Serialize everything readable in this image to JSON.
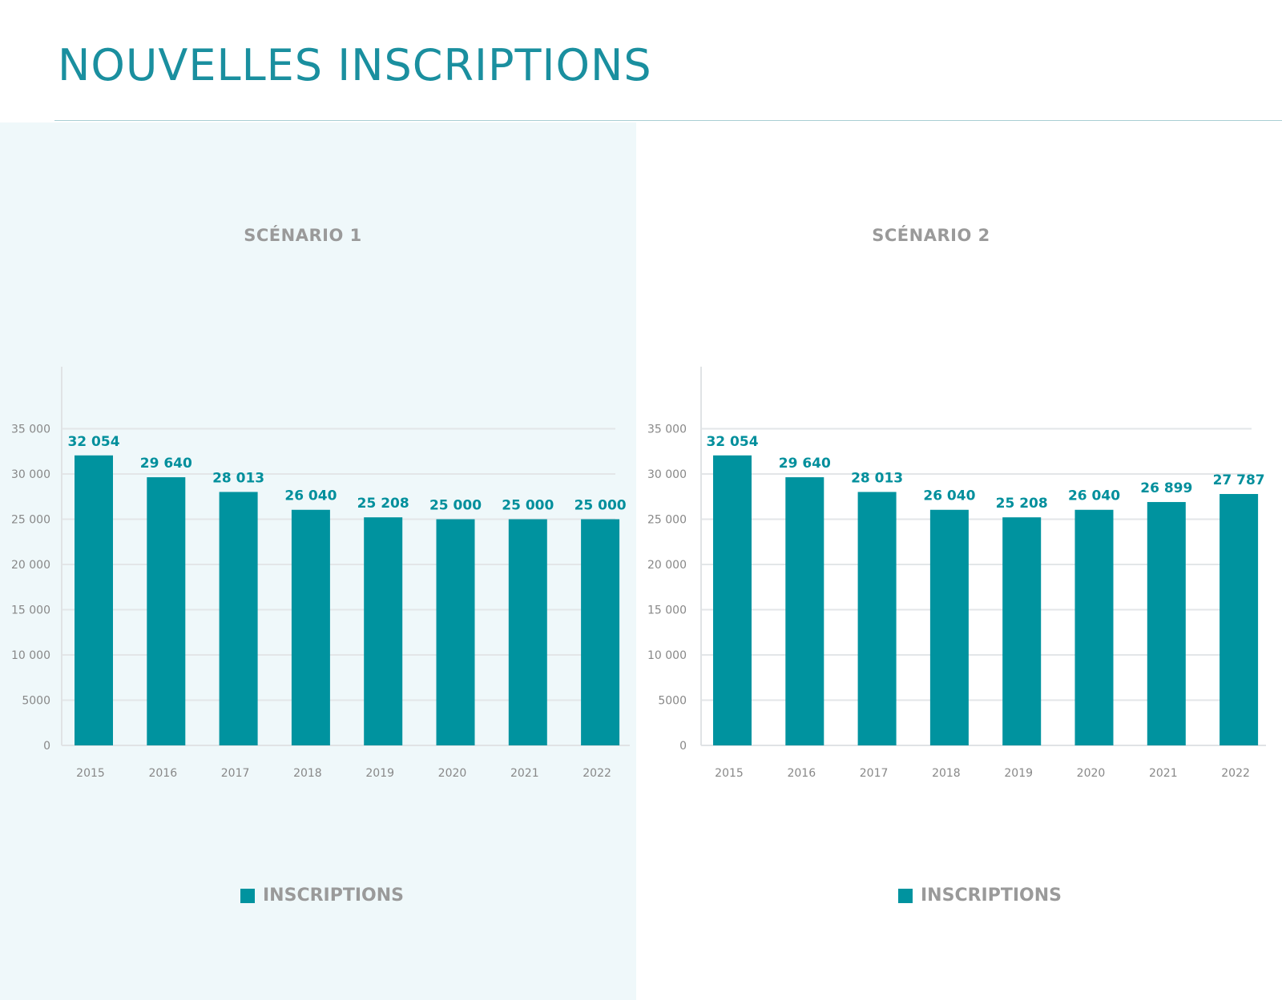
{
  "page": {
    "title": "NOUVELLES INSCRIPTIONS"
  },
  "colors": {
    "accent": "#00939f",
    "title": "#1a8f9f",
    "panel_left_bg": "#eff8fa",
    "label": "#9a9a9a"
  },
  "chart_data": [
    {
      "type": "bar",
      "title": "SCÉNARIO 1",
      "categories": [
        "2015",
        "2016",
        "2017",
        "2018",
        "2019",
        "2020",
        "2021",
        "2022"
      ],
      "series": [
        {
          "name": "INSCRIPTIONS",
          "values": [
            32054,
            29640,
            28013,
            26040,
            25208,
            25000,
            25000,
            25000
          ]
        }
      ],
      "data_labels": [
        "32 054",
        "29 640",
        "28 013",
        "26 040",
        "25 208",
        "25 000",
        "25 000",
        "25 000"
      ],
      "yticks": [
        0,
        5000,
        10000,
        15000,
        20000,
        25000,
        30000,
        35000
      ],
      "ytick_labels": [
        "0",
        "5000",
        "10 000",
        "15 000",
        "20 000",
        "25 000",
        "30 000",
        "35 000"
      ],
      "ylim": [
        0,
        40000
      ],
      "grid": true,
      "legend": "bottom-center"
    },
    {
      "type": "bar",
      "title": "SCÉNARIO 2",
      "categories": [
        "2015",
        "2016",
        "2017",
        "2018",
        "2019",
        "2020",
        "2021",
        "2022"
      ],
      "series": [
        {
          "name": "INSCRIPTIONS",
          "values": [
            32054,
            29640,
            28013,
            26040,
            25208,
            26040,
            26899,
            27787
          ]
        }
      ],
      "data_labels": [
        "32 054",
        "29 640",
        "28 013",
        "26 040",
        "25 208",
        "26 040",
        "26 899",
        "27 787"
      ],
      "yticks": [
        0,
        5000,
        10000,
        15000,
        20000,
        25000,
        30000,
        35000
      ],
      "ytick_labels": [
        "0",
        "5000",
        "10 000",
        "15 000",
        "20 000",
        "25 000",
        "30 000",
        "35 000"
      ],
      "ylim": [
        0,
        40000
      ],
      "grid": true,
      "legend": "bottom-center"
    }
  ]
}
